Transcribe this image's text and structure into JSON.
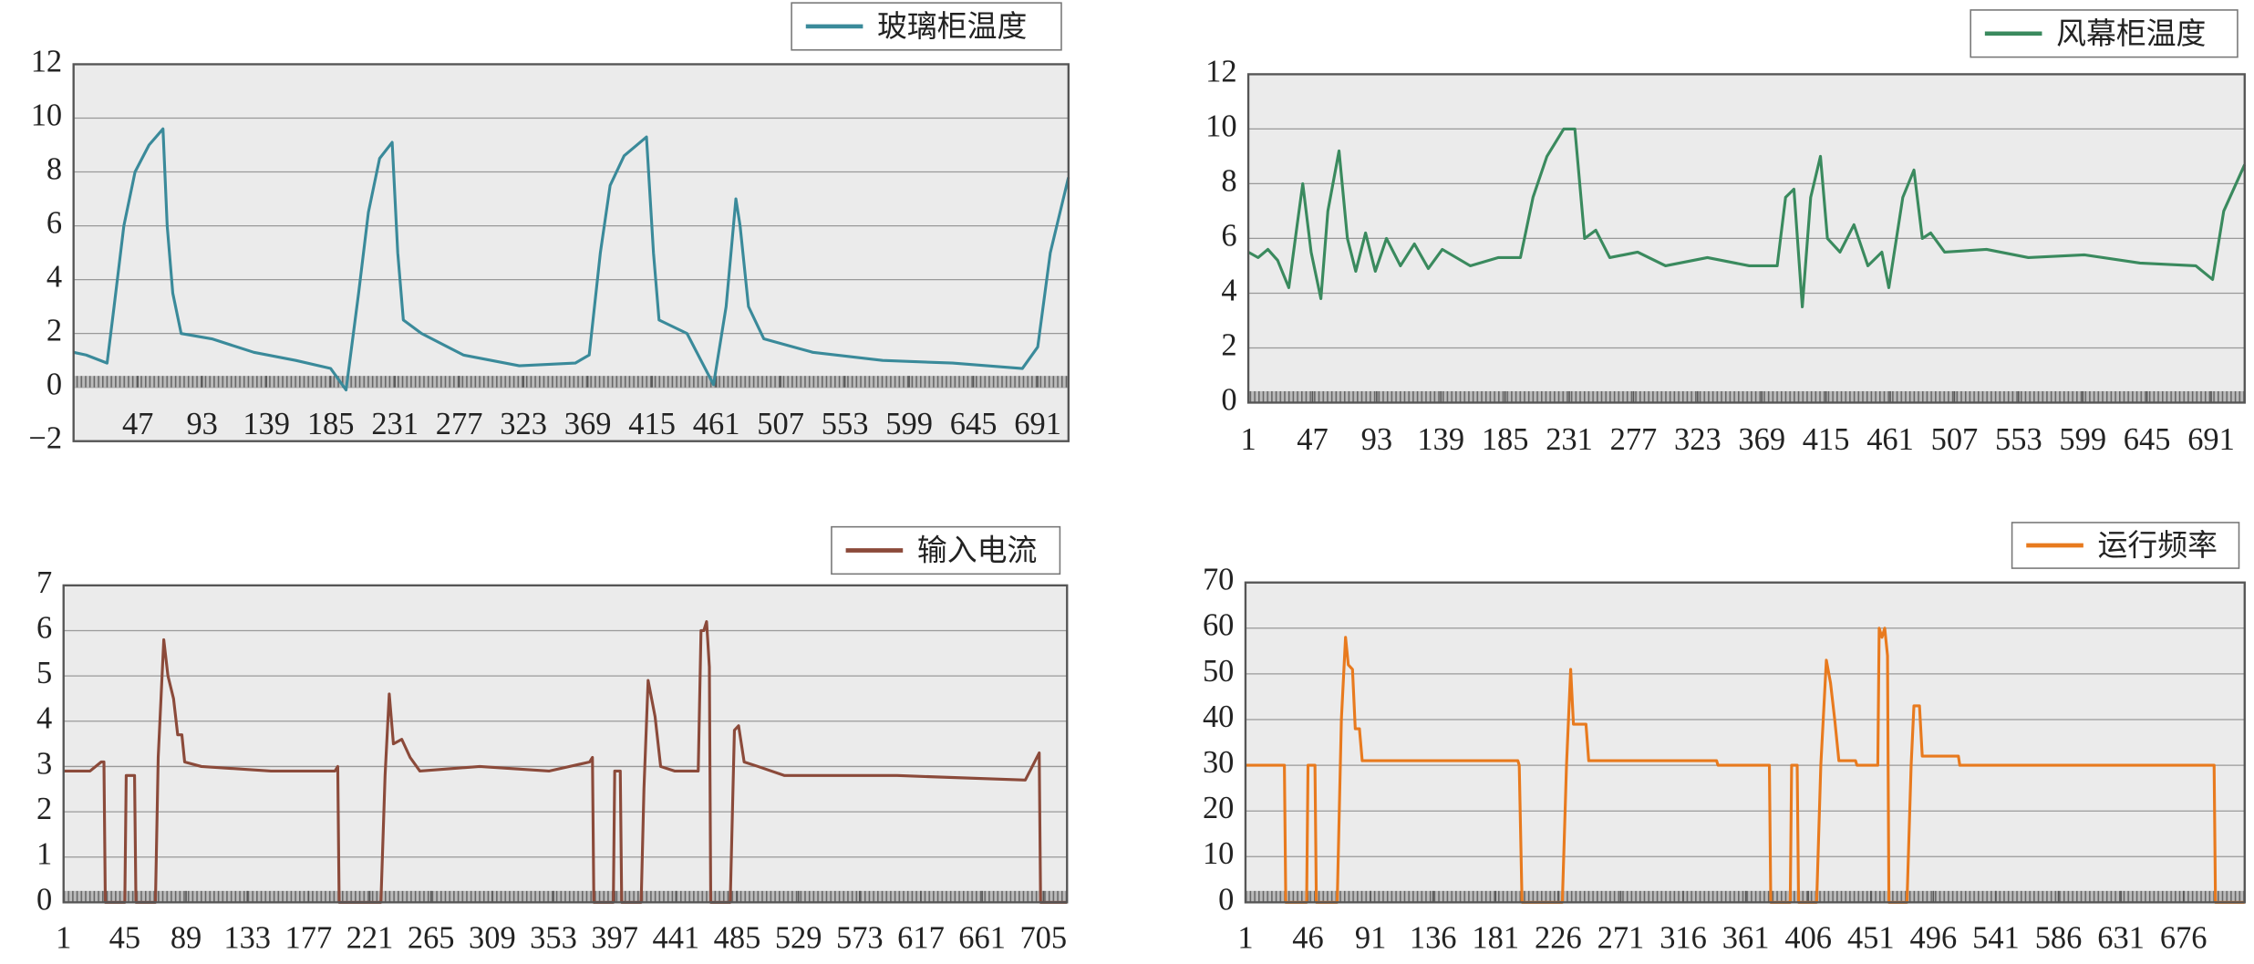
{
  "chart_data": [
    {
      "type": "line",
      "x": [
        1,
        10,
        25,
        30,
        37,
        45,
        55,
        65,
        68,
        72,
        78,
        100,
        130,
        160,
        185,
        196,
        205,
        212,
        220,
        229,
        233,
        237,
        250,
        280,
        320,
        360,
        370,
        378,
        385,
        395,
        411,
        416,
        420,
        440,
        459,
        468,
        475,
        478,
        484,
        495,
        530,
        580,
        630,
        680,
        691,
        700,
        713
      ],
      "series": [
        {
          "name": "玻璃柜温度",
          "color": "#3a8a9a",
          "values": [
            1.3,
            1.2,
            0.9,
            3,
            6,
            8,
            9,
            9.6,
            6,
            3.5,
            2,
            1.8,
            1.3,
            1,
            0.7,
            -0.1,
            3.5,
            6.5,
            8.5,
            9.1,
            5,
            2.5,
            2,
            1.2,
            0.8,
            0.9,
            1.2,
            5,
            7.5,
            8.6,
            9.3,
            5,
            2.5,
            2,
            0.1,
            3,
            7,
            6,
            3,
            1.8,
            1.3,
            1,
            0.9,
            0.7,
            1.5,
            5,
            7.8
          ]
        }
      ],
      "xlim": [
        1,
        713
      ],
      "ylim": [
        -2,
        12
      ],
      "xticks": [
        47,
        93,
        139,
        185,
        231,
        277,
        323,
        369,
        415,
        461,
        507,
        553,
        599,
        645,
        691
      ],
      "yticks": [
        {
          "value": -2,
          "label": "−2"
        },
        0,
        2,
        4,
        6,
        8,
        10,
        12
      ],
      "grid": true,
      "legend": "upper right"
    },
    {
      "type": "line",
      "x": [
        1,
        8,
        15,
        22,
        30,
        36,
        40,
        46,
        53,
        58,
        66,
        72,
        78,
        85,
        92,
        100,
        110,
        120,
        130,
        140,
        160,
        180,
        196,
        205,
        215,
        227,
        235,
        242,
        250,
        260,
        280,
        300,
        330,
        360,
        380,
        386,
        392,
        398,
        404,
        411,
        416,
        425,
        435,
        445,
        455,
        460,
        470,
        478,
        484,
        490,
        500,
        530,
        560,
        600,
        640,
        680,
        692,
        700,
        715
      ],
      "series": [
        {
          "name": "风幕柜温度",
          "color": "#3a8a5e",
          "values": [
            5.5,
            5.3,
            5.6,
            5.2,
            4.2,
            6.5,
            8,
            5.5,
            3.8,
            7,
            9.2,
            6,
            4.8,
            6.2,
            4.8,
            6,
            5,
            5.8,
            4.9,
            5.6,
            5,
            5.3,
            5.3,
            7.5,
            9,
            10,
            10,
            6,
            6.3,
            5.3,
            5.5,
            5,
            5.3,
            5,
            5,
            7.5,
            7.8,
            3.5,
            7.5,
            9,
            6,
            5.5,
            6.5,
            5,
            5.5,
            4.2,
            7.5,
            8.5,
            6,
            6.2,
            5.5,
            5.6,
            5.3,
            5.4,
            5.1,
            5,
            4.5,
            7,
            8.7
          ]
        }
      ],
      "xlim": [
        1,
        715
      ],
      "ylim": [
        0,
        12
      ],
      "xticks": [
        1,
        47,
        93,
        139,
        185,
        231,
        277,
        323,
        369,
        415,
        461,
        507,
        553,
        599,
        645,
        691
      ],
      "yticks": [
        0,
        2,
        4,
        6,
        8,
        10,
        12
      ],
      "grid": true,
      "legend": "upper right"
    },
    {
      "type": "line",
      "x": [
        1,
        20,
        28,
        30,
        31,
        45,
        46,
        52,
        53,
        67,
        69,
        73,
        76,
        80,
        83,
        86,
        88,
        100,
        150,
        196,
        198,
        199,
        229,
        232,
        235,
        238,
        244,
        250,
        257,
        300,
        350,
        379,
        381,
        382,
        396,
        397,
        401,
        402,
        416,
        418,
        421,
        426,
        430,
        440,
        457,
        459,
        461,
        463,
        465,
        466,
        480,
        483,
        486,
        490,
        500,
        519,
        600,
        692,
        702,
        703,
        722
      ],
      "series": [
        {
          "name": "输入电流",
          "color": "#8b4a3a",
          "values": [
            2.9,
            2.9,
            3.1,
            3.1,
            0,
            0,
            2.8,
            2.8,
            0,
            0,
            3.2,
            5.8,
            5,
            4.5,
            3.7,
            3.7,
            3.1,
            3,
            2.9,
            2.9,
            3,
            0,
            0,
            2.8,
            4.6,
            3.5,
            3.6,
            3.2,
            2.9,
            3,
            2.9,
            3.1,
            3.2,
            0,
            0,
            2.9,
            2.9,
            0,
            0,
            2.5,
            4.9,
            4.1,
            3,
            2.9,
            2.9,
            6,
            6,
            6.2,
            5.2,
            0,
            0,
            3.8,
            3.9,
            3.1,
            3,
            2.8,
            2.8,
            2.7,
            3.3,
            0,
            0
          ]
        }
      ],
      "xlim": [
        1,
        722
      ],
      "ylim": [
        0,
        7
      ],
      "xticks": [
        1,
        45,
        89,
        133,
        177,
        221,
        265,
        309,
        353,
        397,
        441,
        485,
        529,
        573,
        617,
        661,
        705
      ],
      "yticks": [
        0,
        1,
        2,
        3,
        4,
        5,
        6,
        7
      ],
      "grid": true,
      "legend": "upper right"
    },
    {
      "type": "line",
      "x": [
        1,
        29,
        30,
        45,
        46,
        51,
        52,
        67,
        70,
        73,
        75,
        78,
        80,
        83,
        85,
        197,
        198,
        200,
        229,
        232,
        235,
        237,
        246,
        248,
        340,
        341,
        378,
        379,
        393,
        394,
        398,
        399,
        412,
        415,
        419,
        422,
        425,
        428,
        440,
        441,
        456,
        457,
        459,
        461,
        463,
        464,
        477,
        480,
        482,
        486,
        488,
        514,
        515,
        698,
        699,
        720
      ],
      "series": [
        {
          "name": "运行频率",
          "color": "#e87a1e",
          "values": [
            30,
            30,
            0,
            0,
            30,
            30,
            0,
            0,
            40,
            58,
            52,
            51,
            38,
            38,
            31,
            31,
            30,
            0,
            0,
            30,
            51,
            39,
            39,
            31,
            31,
            30,
            30,
            0,
            0,
            30,
            30,
            0,
            0,
            30,
            53,
            48,
            40,
            31,
            31,
            30,
            30,
            60,
            58,
            60,
            54,
            0,
            0,
            30,
            43,
            43,
            32,
            32,
            30,
            30,
            0,
            0
          ]
        }
      ],
      "xlim": [
        1,
        720
      ],
      "ylim": [
        0,
        70
      ],
      "xticks": [
        1,
        46,
        91,
        136,
        181,
        226,
        271,
        316,
        361,
        406,
        451,
        496,
        541,
        586,
        631,
        676
      ],
      "yticks": [
        0,
        10,
        20,
        30,
        40,
        50,
        60,
        70
      ],
      "grid": true,
      "legend": "upper right"
    }
  ]
}
